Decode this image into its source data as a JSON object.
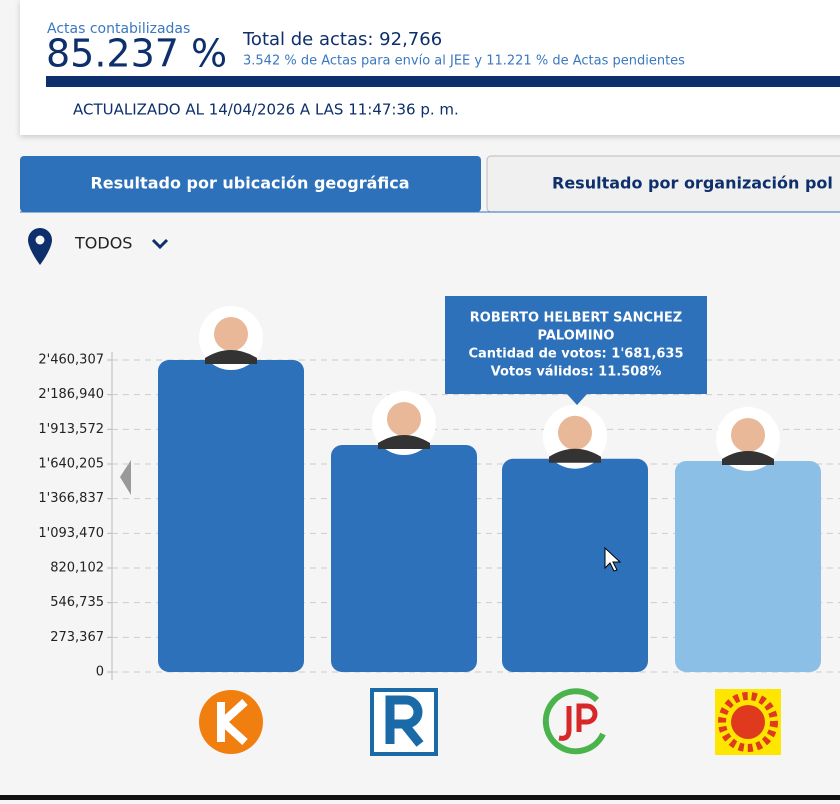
{
  "header": {
    "counted_label": "Actas contabilizadas",
    "counted_percent": "85.237 %",
    "total": "Total de actas: 92,766",
    "pending": "3.542 % de Actas para envío al JEE y 11.221 % de Actas pendientes",
    "updated": "ACTUALIZADO AL 14/04/2026 A LAS 11:47:36 p. m."
  },
  "tabs": [
    "Resultado por ubicación geográfica",
    "Resultado por organización pol"
  ],
  "location": "TODOS",
  "chart_data": {
    "type": "bar",
    "categories": [
      null,
      null,
      null,
      null
    ],
    "values": [
      2460307,
      1790000,
      1681635,
      1664000
    ],
    "colors": [
      "#2e71bb",
      "#2e71bb",
      "#2e71bb",
      "#8bbfe6"
    ],
    "ylim": [
      0,
      2460307
    ],
    "yticks": [
      0,
      {
        "value": 273367,
        "label": "273,367"
      },
      {
        "value": 546735,
        "label": "546,735"
      },
      {
        "value": 820102,
        "label": "820,102"
      },
      {
        "value": 1093470,
        "label": "1'093,470"
      },
      {
        "value": 1366837,
        "label": "1'366,837"
      },
      {
        "value": 1640205,
        "label": "1'640,205"
      },
      {
        "value": 1913572,
        "label": "1'913,572"
      },
      {
        "value": 2186940,
        "label": "2'186,940"
      },
      {
        "value": 2460307,
        "label": "2'460,307"
      }
    ],
    "grid": true,
    "tooltip": [
      "ROBERTO HELBERT SANCHEZ",
      "PALOMINO",
      "Cantidad de votos: 1'681,635",
      "Votos válidos: 11.508%"
    ]
  }
}
